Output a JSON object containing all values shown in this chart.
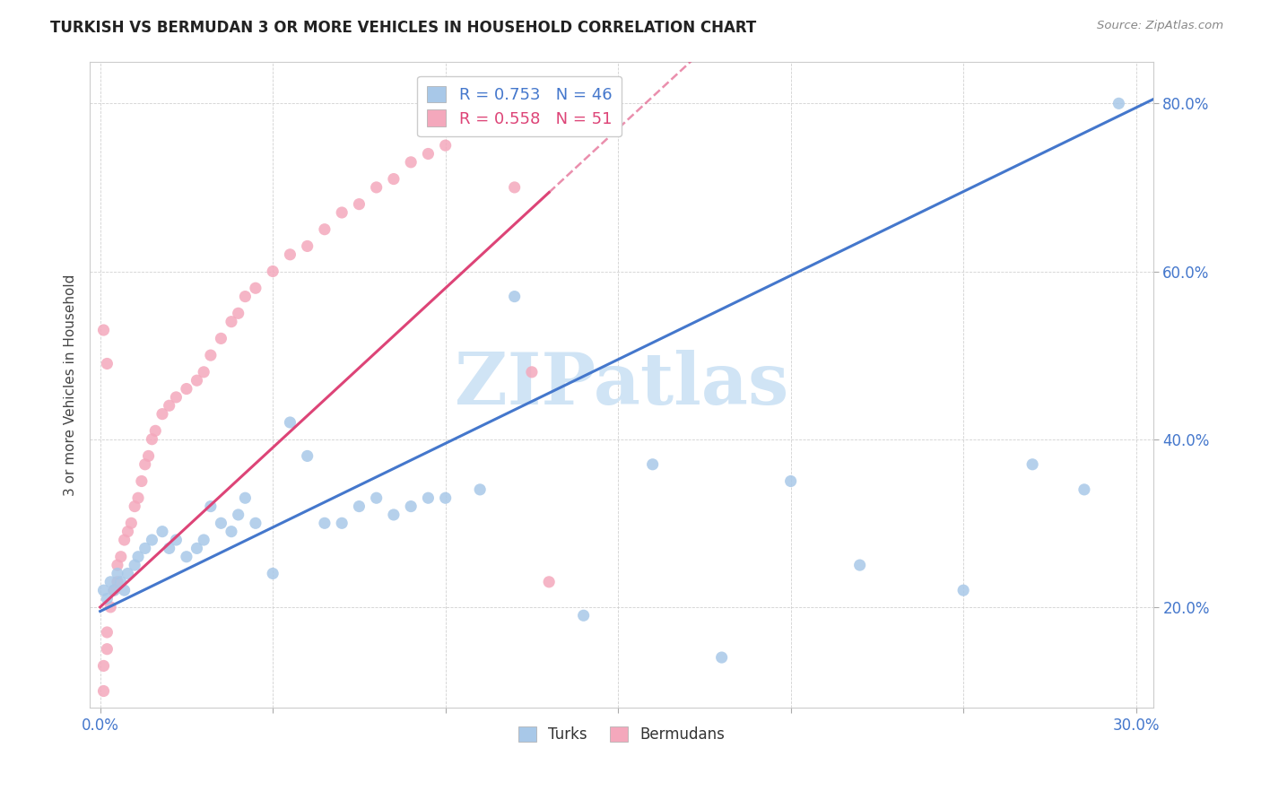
{
  "title": "TURKISH VS BERMUDAN 3 OR MORE VEHICLES IN HOUSEHOLD CORRELATION CHART",
  "source": "Source: ZipAtlas.com",
  "ylabel": "3 or more Vehicles in Household",
  "turks_label": "Turks",
  "bermudans_label": "Bermudans",
  "turks_R": "0.753",
  "turks_N": "46",
  "bermudans_R": "0.558",
  "bermudans_N": "51",
  "turks_color": "#a8c8e8",
  "bermudans_color": "#f4a8bc",
  "turks_line_color": "#4477cc",
  "bermudans_line_color": "#dd4477",
  "watermark_color": "#d0e4f5",
  "xlim": [
    -0.003,
    0.305
  ],
  "ylim": [
    0.08,
    0.85
  ],
  "xticks": [
    0.0,
    0.05,
    0.1,
    0.15,
    0.2,
    0.25,
    0.3
  ],
  "yticks": [
    0.2,
    0.4,
    0.6,
    0.8
  ],
  "turks_slope": 2.0,
  "turks_intercept": 0.195,
  "bermudans_slope": 3.8,
  "bermudans_intercept": 0.2,
  "turks_x": [
    0.001,
    0.002,
    0.003,
    0.004,
    0.005,
    0.006,
    0.007,
    0.008,
    0.01,
    0.011,
    0.013,
    0.015,
    0.018,
    0.02,
    0.022,
    0.025,
    0.028,
    0.03,
    0.032,
    0.035,
    0.038,
    0.04,
    0.042,
    0.045,
    0.05,
    0.055,
    0.06,
    0.065,
    0.07,
    0.075,
    0.08,
    0.085,
    0.09,
    0.095,
    0.1,
    0.11,
    0.12,
    0.14,
    0.16,
    0.18,
    0.2,
    0.22,
    0.25,
    0.27,
    0.285,
    0.295
  ],
  "turks_y": [
    0.22,
    0.21,
    0.23,
    0.22,
    0.24,
    0.23,
    0.22,
    0.24,
    0.25,
    0.26,
    0.27,
    0.28,
    0.29,
    0.27,
    0.28,
    0.26,
    0.27,
    0.28,
    0.32,
    0.3,
    0.29,
    0.31,
    0.33,
    0.3,
    0.24,
    0.42,
    0.38,
    0.3,
    0.3,
    0.32,
    0.33,
    0.31,
    0.32,
    0.33,
    0.33,
    0.34,
    0.57,
    0.19,
    0.37,
    0.14,
    0.35,
    0.25,
    0.22,
    0.37,
    0.34,
    0.8
  ],
  "bermudans_x": [
    0.001,
    0.001,
    0.002,
    0.002,
    0.003,
    0.004,
    0.005,
    0.005,
    0.006,
    0.007,
    0.008,
    0.009,
    0.01,
    0.011,
    0.012,
    0.013,
    0.014,
    0.015,
    0.016,
    0.018,
    0.02,
    0.022,
    0.025,
    0.028,
    0.03,
    0.032,
    0.035,
    0.038,
    0.04,
    0.042,
    0.045,
    0.05,
    0.055,
    0.06,
    0.065,
    0.07,
    0.075,
    0.08,
    0.085,
    0.09,
    0.095,
    0.1,
    0.105,
    0.11,
    0.115,
    0.12,
    0.125,
    0.13,
    0.001,
    0.002,
    0.12
  ],
  "bermudans_y": [
    0.1,
    0.13,
    0.15,
    0.17,
    0.2,
    0.22,
    0.23,
    0.25,
    0.26,
    0.28,
    0.29,
    0.3,
    0.32,
    0.33,
    0.35,
    0.37,
    0.38,
    0.4,
    0.41,
    0.43,
    0.44,
    0.45,
    0.46,
    0.47,
    0.48,
    0.5,
    0.52,
    0.54,
    0.55,
    0.57,
    0.58,
    0.6,
    0.62,
    0.63,
    0.65,
    0.67,
    0.68,
    0.7,
    0.71,
    0.73,
    0.74,
    0.75,
    0.77,
    0.78,
    0.79,
    0.8,
    0.48,
    0.23,
    0.53,
    0.49,
    0.7
  ]
}
